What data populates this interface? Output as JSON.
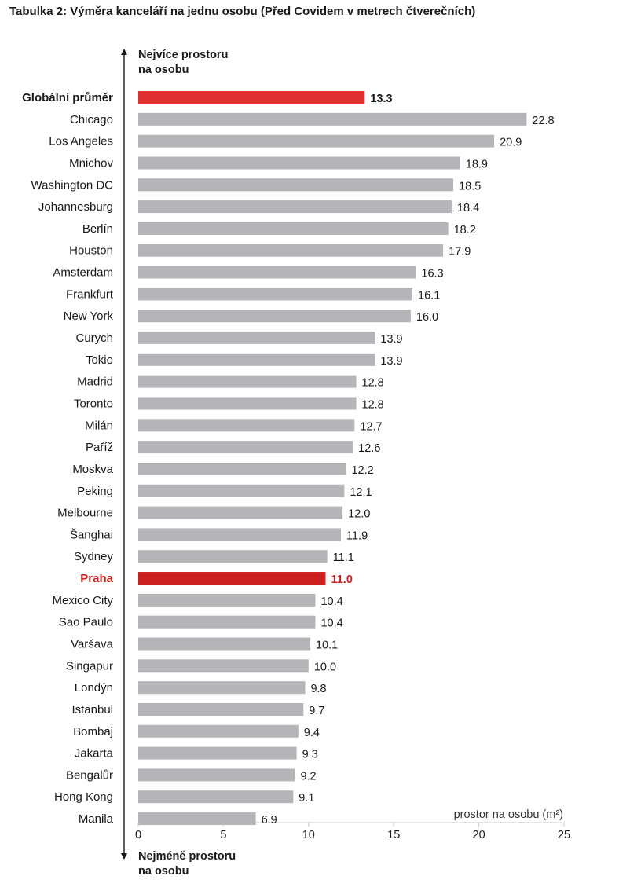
{
  "chart_data": {
    "type": "bar",
    "orientation": "horizontal",
    "title": "Tabulka 2: Výměra kanceláří na jednu osobu (Před Covidem v metrech čtverečních)",
    "top_annotation": [
      "Nejvíce prostoru",
      "na osobu"
    ],
    "bottom_annotation": [
      "Nejméně prostoru",
      "na osobu"
    ],
    "xlabel": "prostor na osobu (m²)",
    "xlim": [
      0,
      25
    ],
    "xticks": [
      "0",
      "5",
      "10",
      "15",
      "20",
      "25"
    ],
    "grid": false,
    "legend": "none",
    "colors": {
      "default": "#b3b5b8",
      "global": "#e03030",
      "highlight": "#cc1f1f"
    },
    "categories": [
      "Globální průměr",
      "Chicago",
      "Los Angeles",
      "Mnichov",
      "Washington DC",
      "Johannesburg",
      "Berlín",
      "Houston",
      "Amsterdam",
      "Frankfurt",
      "New York",
      "Curych",
      "Tokio",
      "Madrid",
      "Toronto",
      "Milán",
      "Paříž",
      "Moskva",
      "Peking",
      "Melbourne",
      "Šanghai",
      "Sydney",
      "Praha",
      "Mexico City",
      "Sao Paulo",
      "Varšava",
      "Singapur",
      "Londýn",
      "Istanbul",
      "Bombaj",
      "Jakarta",
      "Bengalůr",
      "Hong Kong",
      "Manila"
    ],
    "values": [
      13.3,
      22.8,
      20.9,
      18.9,
      18.5,
      18.4,
      18.2,
      17.9,
      16.3,
      16.1,
      16.0,
      13.9,
      13.9,
      12.8,
      12.8,
      12.7,
      12.6,
      12.2,
      12.1,
      12.0,
      11.9,
      11.1,
      11.0,
      10.4,
      10.4,
      10.1,
      10.0,
      9.8,
      9.7,
      9.4,
      9.3,
      9.2,
      9.1,
      6.9
    ],
    "value_labels": [
      "13.3",
      "22.8",
      "20.9",
      "18.9",
      "18.5",
      "18.4",
      "18.2",
      "17.9",
      "16.3",
      "16.1",
      "16.0",
      "13.9",
      "13.9",
      "12.8",
      "12.8",
      "12.7",
      "12.6",
      "12.2",
      "12.1",
      "12.0",
      "11.9",
      "11.1",
      "11.0",
      "10.4",
      "10.4",
      "10.1",
      "10.0",
      "9.8",
      "9.7",
      "9.4",
      "9.3",
      "9.2",
      "9.1",
      "6.9"
    ],
    "styles": [
      "global",
      "default",
      "default",
      "default",
      "default",
      "default",
      "default",
      "default",
      "default",
      "default",
      "default",
      "default",
      "default",
      "default",
      "default",
      "default",
      "default",
      "default",
      "default",
      "default",
      "default",
      "default",
      "highlight",
      "default",
      "default",
      "default",
      "default",
      "default",
      "default",
      "default",
      "default",
      "default",
      "default",
      "default"
    ]
  }
}
